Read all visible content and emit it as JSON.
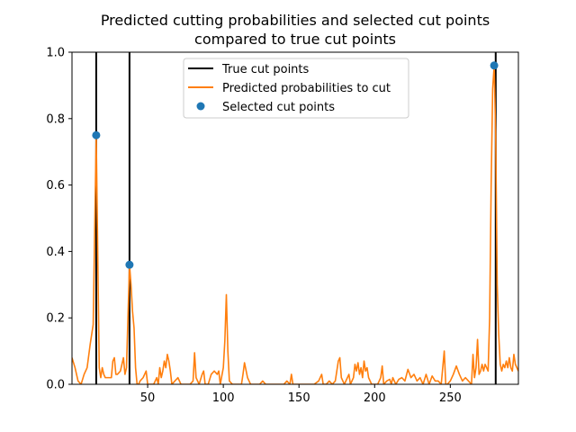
{
  "chart_data": {
    "type": "line",
    "title_lines": [
      "Predicted cutting probabilities and selected cut points",
      "compared to true cut points"
    ],
    "xlabel": "",
    "ylabel": "",
    "xlim": [
      0,
      295
    ],
    "ylim": [
      0,
      1.0
    ],
    "x_ticks": [
      50,
      100,
      150,
      200,
      250
    ],
    "y_ticks": [
      0.0,
      0.2,
      0.4,
      0.6,
      0.8,
      1.0
    ],
    "y_tick_labels": [
      "0.0",
      "0.2",
      "0.4",
      "0.6",
      "0.8",
      "1.0"
    ],
    "grid": false,
    "legend_position": "top-center",
    "true_cut_points": {
      "name": "True cut points",
      "color": "#000000",
      "x": [
        16,
        38,
        280
      ]
    },
    "predicted": {
      "name": "Predicted probabilities to cut",
      "color": "#ff7f0e",
      "points": [
        [
          0,
          0.08
        ],
        [
          2,
          0.05
        ],
        [
          4,
          0.01
        ],
        [
          6,
          0.0
        ],
        [
          8,
          0.03
        ],
        [
          10,
          0.05
        ],
        [
          12,
          0.12
        ],
        [
          14,
          0.18
        ],
        [
          16,
          0.75
        ],
        [
          17,
          0.4
        ],
        [
          18,
          0.05
        ],
        [
          19,
          0.02
        ],
        [
          20,
          0.05
        ],
        [
          21,
          0.03
        ],
        [
          22,
          0.02
        ],
        [
          24,
          0.02
        ],
        [
          26,
          0.02
        ],
        [
          27,
          0.07
        ],
        [
          28,
          0.08
        ],
        [
          29,
          0.03
        ],
        [
          30,
          0.03
        ],
        [
          32,
          0.04
        ],
        [
          34,
          0.08
        ],
        [
          35,
          0.03
        ],
        [
          36,
          0.05
        ],
        [
          38,
          0.36
        ],
        [
          39,
          0.3
        ],
        [
          40,
          0.22
        ],
        [
          41,
          0.17
        ],
        [
          42,
          0.05
        ],
        [
          43,
          0.0
        ],
        [
          44,
          0.0
        ],
        [
          45,
          0.01
        ],
        [
          47,
          0.02
        ],
        [
          49,
          0.04
        ],
        [
          50,
          0.0
        ],
        [
          52,
          0.0
        ],
        [
          54,
          0.0
        ],
        [
          56,
          0.02
        ],
        [
          57,
          0.0
        ],
        [
          58,
          0.05
        ],
        [
          59,
          0.02
        ],
        [
          60,
          0.04
        ],
        [
          61,
          0.07
        ],
        [
          62,
          0.05
        ],
        [
          63,
          0.09
        ],
        [
          64,
          0.07
        ],
        [
          65,
          0.04
        ],
        [
          66,
          0.0
        ],
        [
          68,
          0.01
        ],
        [
          70,
          0.02
        ],
        [
          72,
          0.0
        ],
        [
          74,
          0.0
        ],
        [
          76,
          0.0
        ],
        [
          78,
          0.0
        ],
        [
          80,
          0.01
        ],
        [
          81,
          0.095
        ],
        [
          82,
          0.02
        ],
        [
          84,
          0.0
        ],
        [
          86,
          0.03
        ],
        [
          87,
          0.04
        ],
        [
          88,
          0.0
        ],
        [
          90,
          0.0
        ],
        [
          92,
          0.03
        ],
        [
          94,
          0.04
        ],
        [
          96,
          0.03
        ],
        [
          97,
          0.04
        ],
        [
          98,
          0.0
        ],
        [
          100,
          0.05
        ],
        [
          101,
          0.13
        ],
        [
          102,
          0.27
        ],
        [
          103,
          0.1
        ],
        [
          104,
          0.01
        ],
        [
          106,
          0.0
        ],
        [
          108,
          0.0
        ],
        [
          110,
          0.0
        ],
        [
          112,
          0.0
        ],
        [
          113,
          0.03
        ],
        [
          114,
          0.065
        ],
        [
          116,
          0.02
        ],
        [
          118,
          0.0
        ],
        [
          120,
          0.0
        ],
        [
          122,
          0.0
        ],
        [
          124,
          0.0
        ],
        [
          126,
          0.01
        ],
        [
          128,
          0.0
        ],
        [
          130,
          0.0
        ],
        [
          132,
          0.0
        ],
        [
          134,
          0.0
        ],
        [
          136,
          0.0
        ],
        [
          138,
          0.0
        ],
        [
          140,
          0.0
        ],
        [
          142,
          0.01
        ],
        [
          144,
          0.0
        ],
        [
          145,
          0.03
        ],
        [
          146,
          0.0
        ],
        [
          148,
          0.0
        ],
        [
          150,
          0.0
        ],
        [
          152,
          0.0
        ],
        [
          155,
          0.0
        ],
        [
          158,
          0.0
        ],
        [
          160,
          0.0
        ],
        [
          163,
          0.01
        ],
        [
          165,
          0.03
        ],
        [
          166,
          0.0
        ],
        [
          168,
          0.0
        ],
        [
          170,
          0.01
        ],
        [
          172,
          0.0
        ],
        [
          174,
          0.01
        ],
        [
          176,
          0.07
        ],
        [
          177,
          0.08
        ],
        [
          178,
          0.02
        ],
        [
          180,
          0.0
        ],
        [
          182,
          0.02
        ],
        [
          183,
          0.03
        ],
        [
          184,
          0.0
        ],
        [
          186,
          0.02
        ],
        [
          187,
          0.06
        ],
        [
          188,
          0.04
        ],
        [
          189,
          0.065
        ],
        [
          190,
          0.03
        ],
        [
          191,
          0.05
        ],
        [
          192,
          0.02
        ],
        [
          193,
          0.07
        ],
        [
          194,
          0.04
        ],
        [
          195,
          0.05
        ],
        [
          196,
          0.02
        ],
        [
          198,
          0.0
        ],
        [
          200,
          0.0
        ],
        [
          202,
          0.0
        ],
        [
          204,
          0.02
        ],
        [
          205,
          0.055
        ],
        [
          206,
          0.0
        ],
        [
          208,
          0.01
        ],
        [
          210,
          0.015
        ],
        [
          211,
          0.0
        ],
        [
          212,
          0.02
        ],
        [
          213,
          0.01
        ],
        [
          214,
          0.0
        ],
        [
          216,
          0.015
        ],
        [
          218,
          0.02
        ],
        [
          220,
          0.01
        ],
        [
          222,
          0.045
        ],
        [
          224,
          0.02
        ],
        [
          226,
          0.03
        ],
        [
          228,
          0.01
        ],
        [
          230,
          0.02
        ],
        [
          232,
          0.0
        ],
        [
          234,
          0.03
        ],
        [
          236,
          0.0
        ],
        [
          238,
          0.025
        ],
        [
          240,
          0.01
        ],
        [
          242,
          0.01
        ],
        [
          244,
          0.0
        ],
        [
          246,
          0.1
        ],
        [
          247,
          0.0
        ],
        [
          248,
          0.0
        ],
        [
          250,
          0.01
        ],
        [
          252,
          0.03
        ],
        [
          254,
          0.055
        ],
        [
          256,
          0.03
        ],
        [
          258,
          0.01
        ],
        [
          260,
          0.02
        ],
        [
          262,
          0.01
        ],
        [
          264,
          0.0
        ],
        [
          265,
          0.09
        ],
        [
          266,
          0.02
        ],
        [
          267,
          0.05
        ],
        [
          268,
          0.135
        ],
        [
          269,
          0.03
        ],
        [
          270,
          0.04
        ],
        [
          271,
          0.06
        ],
        [
          272,
          0.04
        ],
        [
          273,
          0.06
        ],
        [
          274,
          0.05
        ],
        [
          275,
          0.04
        ],
        [
          276,
          0.2
        ],
        [
          277,
          0.6
        ],
        [
          278,
          0.89
        ],
        [
          279,
          0.96
        ],
        [
          280,
          0.75
        ],
        [
          281,
          0.3
        ],
        [
          282,
          0.15
        ],
        [
          283,
          0.06
        ],
        [
          284,
          0.04
        ],
        [
          285,
          0.06
        ],
        [
          286,
          0.05
        ],
        [
          287,
          0.07
        ],
        [
          288,
          0.05
        ],
        [
          289,
          0.08
        ],
        [
          290,
          0.05
        ],
        [
          291,
          0.04
        ],
        [
          292,
          0.09
        ],
        [
          293,
          0.06
        ],
        [
          295,
          0.04
        ]
      ]
    },
    "selected": {
      "name": "Selected cut points",
      "color": "#1f77b4",
      "x": [
        16,
        38,
        279
      ],
      "y": [
        0.75,
        0.36,
        0.96
      ]
    }
  }
}
